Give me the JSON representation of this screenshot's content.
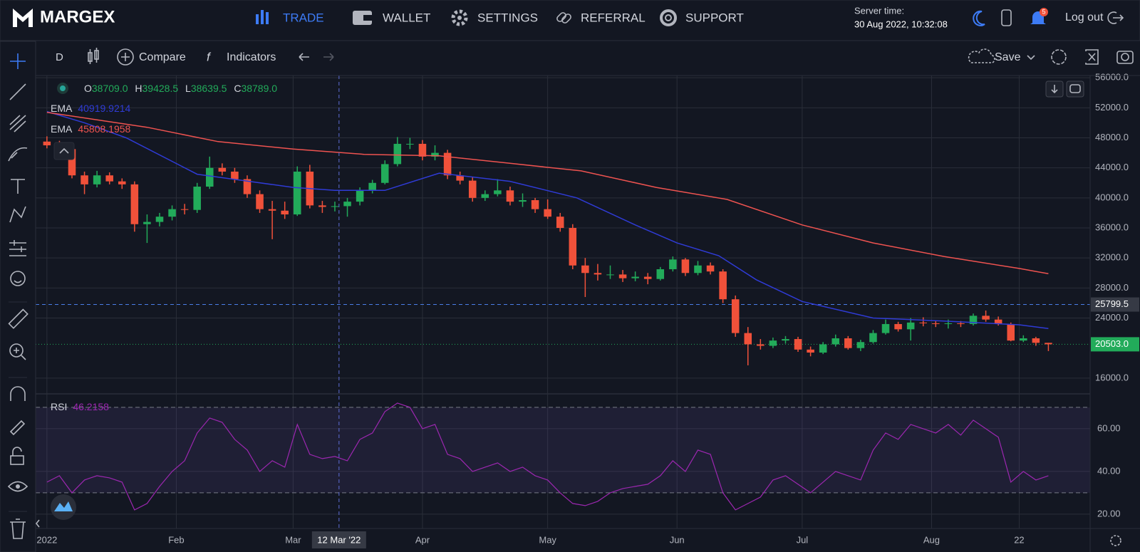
{
  "nav": {
    "logo": "MARGEX",
    "items": [
      "TRADE",
      "WALLET",
      "SETTINGS",
      "REFERRAL",
      "SUPPORT"
    ],
    "server_time_label": "Server time:",
    "server_time": "30 Aug 2022, 10:32:08",
    "notifications": 5,
    "logout": "Log out"
  },
  "toolbar": {
    "interval": "D",
    "compare": "Compare",
    "indicators": "Indicators",
    "save": "Save"
  },
  "chart_data": {
    "type": "candlestick",
    "ohlc_legend": [
      {
        "key": "O",
        "value": 38709,
        "label": "38709.0"
      },
      {
        "key": "H",
        "value": 39428.5,
        "label": "39428.5"
      },
      {
        "key": "L",
        "value": 38639.5,
        "label": "38639.5"
      },
      {
        "key": "C",
        "value": 38789,
        "label": "38789.0"
      }
    ],
    "up_color": "#22ab5a",
    "down_color": "#f0513a",
    "x": [
      "2022-01-01",
      "2022-01-04",
      "2022-01-07",
      "2022-01-10",
      "2022-01-13",
      "2022-01-16",
      "2022-01-19",
      "2022-01-22",
      "2022-01-25",
      "2022-01-28",
      "2022-01-31",
      "2022-02-03",
      "2022-02-06",
      "2022-02-09",
      "2022-02-12",
      "2022-02-15",
      "2022-02-18",
      "2022-02-21",
      "2022-02-24",
      "2022-02-27",
      "2022-03-02",
      "2022-03-05",
      "2022-03-08",
      "2022-03-11",
      "2022-03-14",
      "2022-03-17",
      "2022-03-20",
      "2022-03-23",
      "2022-03-26",
      "2022-03-29",
      "2022-04-01",
      "2022-04-04",
      "2022-04-07",
      "2022-04-10",
      "2022-04-13",
      "2022-04-16",
      "2022-04-19",
      "2022-04-22",
      "2022-04-25",
      "2022-04-28",
      "2022-05-01",
      "2022-05-04",
      "2022-05-07",
      "2022-05-10",
      "2022-05-13",
      "2022-05-16",
      "2022-05-19",
      "2022-05-22",
      "2022-05-25",
      "2022-05-28",
      "2022-05-31",
      "2022-06-03",
      "2022-06-06",
      "2022-06-09",
      "2022-06-12",
      "2022-06-15",
      "2022-06-18",
      "2022-06-21",
      "2022-06-24",
      "2022-06-27",
      "2022-06-30",
      "2022-07-03",
      "2022-07-06",
      "2022-07-09",
      "2022-07-12",
      "2022-07-15",
      "2022-07-18",
      "2022-07-21",
      "2022-07-24",
      "2022-07-27",
      "2022-07-30",
      "2022-08-02",
      "2022-08-05",
      "2022-08-08",
      "2022-08-11",
      "2022-08-14",
      "2022-08-17",
      "2022-08-20",
      "2022-08-23",
      "2022-08-26",
      "2022-08-29"
    ],
    "candles": [
      [
        47500,
        48200,
        46600,
        47000
      ],
      [
        47000,
        47600,
        46000,
        46500
      ],
      [
        46500,
        47000,
        42600,
        43000
      ],
      [
        43000,
        43500,
        40500,
        41800
      ],
      [
        41800,
        43600,
        41400,
        43000
      ],
      [
        43000,
        43400,
        41800,
        42200
      ],
      [
        42200,
        42600,
        41200,
        41800
      ],
      [
        41800,
        42200,
        35500,
        36500
      ],
      [
        36500,
        37800,
        34000,
        36800
      ],
      [
        36800,
        38000,
        36200,
        37500
      ],
      [
        37500,
        39000,
        37000,
        38500
      ],
      [
        38500,
        39200,
        37800,
        38400
      ],
      [
        38400,
        42000,
        38000,
        41500
      ],
      [
        41500,
        45500,
        41200,
        44000
      ],
      [
        44000,
        44600,
        43000,
        43500
      ],
      [
        43500,
        44000,
        42000,
        42500
      ],
      [
        42500,
        43000,
        40000,
        40500
      ],
      [
        40500,
        41000,
        38000,
        38500
      ],
      [
        38500,
        39600,
        34500,
        38300
      ],
      [
        38300,
        39500,
        37200,
        37800
      ],
      [
        37800,
        44200,
        37600,
        43500
      ],
      [
        43500,
        44400,
        38600,
        39000
      ],
      [
        39000,
        39600,
        38000,
        38800
      ],
      [
        38800,
        39500,
        38200,
        38900
      ],
      [
        38900,
        40000,
        37500,
        39500
      ],
      [
        39500,
        41400,
        39000,
        41000
      ],
      [
        41000,
        42400,
        40600,
        42000
      ],
      [
        42000,
        45000,
        41800,
        44500
      ],
      [
        44500,
        48100,
        44200,
        47200
      ],
      [
        47200,
        48000,
        46500,
        47200
      ],
      [
        47200,
        47700,
        45000,
        45500
      ],
      [
        45500,
        47000,
        45000,
        46000
      ],
      [
        46000,
        46400,
        42500,
        43000
      ],
      [
        43000,
        43500,
        41800,
        42300
      ],
      [
        42300,
        42800,
        39500,
        40000
      ],
      [
        40000,
        41000,
        39600,
        40500
      ],
      [
        40500,
        42500,
        40200,
        41000
      ],
      [
        41000,
        41500,
        39000,
        39500
      ],
      [
        39500,
        40600,
        38800,
        39700
      ],
      [
        39700,
        40000,
        38000,
        38500
      ],
      [
        38500,
        39800,
        37200,
        37500
      ],
      [
        37500,
        38000,
        35500,
        36000
      ],
      [
        36000,
        36500,
        30500,
        31000
      ],
      [
        31000,
        32000,
        26800,
        30000
      ],
      [
        30000,
        31200,
        29000,
        29800
      ],
      [
        29800,
        31000,
        29200,
        29800
      ],
      [
        29800,
        30400,
        28800,
        29300
      ],
      [
        29300,
        30200,
        28900,
        29500
      ],
      [
        29500,
        30000,
        28500,
        29200
      ],
      [
        29200,
        30800,
        29000,
        30500
      ],
      [
        30500,
        32200,
        30200,
        31800
      ],
      [
        31800,
        32000,
        29600,
        30000
      ],
      [
        30000,
        31600,
        29700,
        31000
      ],
      [
        31000,
        31400,
        29800,
        30200
      ],
      [
        30200,
        30500,
        26000,
        26500
      ],
      [
        26500,
        27000,
        21500,
        22000
      ],
      [
        22000,
        22800,
        17700,
        20500
      ],
      [
        20500,
        21200,
        19800,
        20300
      ],
      [
        20300,
        21400,
        20000,
        21000
      ],
      [
        21000,
        21600,
        20600,
        21200
      ],
      [
        21200,
        21500,
        19500,
        19800
      ],
      [
        19800,
        20200,
        18900,
        19400
      ],
      [
        19400,
        20800,
        19200,
        20500
      ],
      [
        20500,
        21800,
        20200,
        21300
      ],
      [
        21300,
        21600,
        19800,
        20000
      ],
      [
        20000,
        21100,
        19600,
        20800
      ],
      [
        20800,
        22400,
        20600,
        22000
      ],
      [
        22000,
        23800,
        21800,
        23200
      ],
      [
        23200,
        23500,
        22200,
        22500
      ],
      [
        22500,
        24000,
        21000,
        23400
      ],
      [
        23400,
        24100,
        22900,
        23300
      ],
      [
        23300,
        23700,
        22800,
        23200
      ],
      [
        23200,
        23800,
        22600,
        23300
      ],
      [
        23300,
        23600,
        22800,
        23200
      ],
      [
        23200,
        24600,
        23000,
        24300
      ],
      [
        24300,
        25000,
        23500,
        23800
      ],
      [
        23800,
        24200,
        23000,
        23200
      ],
      [
        23200,
        23400,
        20900,
        21000
      ],
      [
        21000,
        21700,
        20800,
        21300
      ],
      [
        21300,
        21500,
        20300,
        20700
      ],
      [
        20700,
        20700,
        19600,
        20503
      ]
    ],
    "ema": [
      {
        "name": "EMA",
        "value": 40919.9214,
        "color": "#2f3bd6",
        "x": [
          "2022-01-01",
          "2022-01-10",
          "2022-01-20",
          "2022-02-06",
          "2022-03-01",
          "2022-03-11",
          "2022-03-23",
          "2022-04-05",
          "2022-04-22",
          "2022-05-08",
          "2022-05-22",
          "2022-06-01",
          "2022-06-11",
          "2022-06-20",
          "2022-07-01",
          "2022-07-18",
          "2022-08-04",
          "2022-08-22",
          "2022-08-29"
        ],
        "values": [
          51500,
          50000,
          48000,
          43150,
          41400,
          41000,
          41000,
          43300,
          42200,
          40000,
          36400,
          34000,
          32300,
          29100,
          26200,
          24000,
          23600,
          23100,
          22600
        ]
      },
      {
        "name": "EMA",
        "value": 45808.1958,
        "color": "#ef5350",
        "x": [
          "2022-01-01",
          "2022-01-25",
          "2022-02-11",
          "2022-03-01",
          "2022-03-18",
          "2022-04-05",
          "2022-04-22",
          "2022-05-09",
          "2022-05-27",
          "2022-06-13",
          "2022-07-01",
          "2022-07-18",
          "2022-08-04",
          "2022-08-22",
          "2022-08-29"
        ],
        "values": [
          51400,
          49400,
          47500,
          46500,
          45800,
          45600,
          44600,
          43600,
          41400,
          39800,
          36400,
          34000,
          32200,
          30600,
          29900
        ]
      }
    ],
    "price_lines": [
      {
        "value": 25799.5,
        "label": "25799.5",
        "color": "#4a7ee8",
        "style": "dashed"
      },
      {
        "value": 20503,
        "label": "20503.0",
        "color": "#22ab5a",
        "style": "dotted"
      }
    ],
    "xlim": [
      "2021-12-31",
      "2022-09-08"
    ],
    "xticks": [
      {
        "value": "2022-01-01",
        "label": "2022"
      },
      {
        "value": "2022-02-01",
        "label": "Feb"
      },
      {
        "value": "2022-03-01",
        "label": "Mar"
      },
      {
        "value": "2022-04-01",
        "label": "Apr"
      },
      {
        "value": "2022-05-01",
        "label": "May"
      },
      {
        "value": "2022-06-01",
        "label": "Jun"
      },
      {
        "value": "2022-07-01",
        "label": "Jul"
      },
      {
        "value": "2022-08-01",
        "label": "Aug"
      },
      {
        "value": "2022-08-22",
        "label": "22"
      }
    ],
    "ylim": [
      13900,
      56300
    ],
    "yticks": [
      {
        "value": 56000,
        "label": "56000.0"
      },
      {
        "value": 52000,
        "label": "52000.0"
      },
      {
        "value": 48000,
        "label": "48000.0"
      },
      {
        "value": 44000,
        "label": "44000.0"
      },
      {
        "value": 40000,
        "label": "40000.0"
      },
      {
        "value": 36000,
        "label": "36000.0"
      },
      {
        "value": 32000,
        "label": "32000.0"
      },
      {
        "value": 28000,
        "label": "28000.0"
      },
      {
        "value": 24000,
        "label": "24000.0"
      },
      {
        "value": 16000,
        "label": "16000.0"
      }
    ],
    "grid": true,
    "crosshair": {
      "x": "2022-03-12",
      "label": "12 Mar '22"
    },
    "rsi": {
      "name": "RSI",
      "value": 46.2158,
      "color": "#9c27b0",
      "values": [
        35,
        38,
        30,
        36,
        38,
        37,
        35,
        22,
        25,
        33,
        40,
        45,
        58,
        65,
        63,
        55,
        50,
        40,
        45,
        42,
        62,
        48,
        46,
        47,
        45,
        55,
        58,
        68,
        72,
        70,
        60,
        62,
        48,
        46,
        40,
        42,
        44,
        40,
        42,
        38,
        36,
        30,
        25,
        24,
        26,
        30,
        32,
        33,
        34,
        38,
        45,
        40,
        50,
        48,
        30,
        22,
        25,
        28,
        36,
        38,
        34,
        30,
        35,
        40,
        38,
        36,
        50,
        58,
        55,
        62,
        60,
        58,
        62,
        57,
        64,
        60,
        56,
        35,
        40,
        36,
        38
      ],
      "ylim": [
        13.3,
        76.3
      ],
      "yticks": [
        {
          "value": 60,
          "label": "60.00"
        },
        {
          "value": 40,
          "label": "40.00"
        },
        {
          "value": 20,
          "label": "20.00"
        }
      ],
      "bands": [
        30,
        70
      ]
    }
  }
}
